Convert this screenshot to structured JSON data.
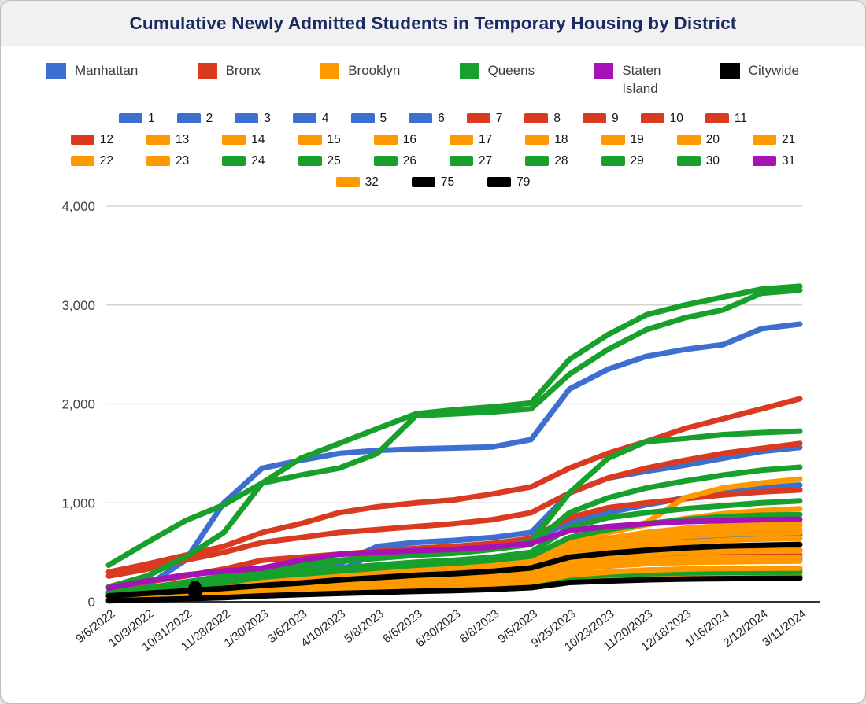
{
  "title": "Cumulative Newly Admitted Students in Temporary Housing by District",
  "colors": {
    "Manhattan": "#3d6fd1",
    "Bronx": "#d93a20",
    "Brooklyn": "#ff9900",
    "Queens": "#17a02b",
    "Staten Island": "#a512b5",
    "Citywide": "#000000",
    "grid": "#cccccc",
    "axis_line": "#333333",
    "y_tick_text": "#444444",
    "x_tick_text": "#222222",
    "title_text": "#1b2a63"
  },
  "chart_data": {
    "type": "line",
    "title": "Cumulative Newly Admitted Students in Temporary Housing by District",
    "xlabel": "",
    "ylabel": "",
    "ylim": [
      0,
      4000
    ],
    "y_ticks": [
      0,
      1000,
      2000,
      3000,
      4000
    ],
    "y_tick_labels": [
      "0",
      "1,000",
      "2,000",
      "3,000",
      "4,000"
    ],
    "grid": true,
    "legend_position": "top",
    "x_tick_labels": [
      "9/6/2022",
      "10/3/2022",
      "10/31/2022",
      "11/28/2022",
      "1/30/2023",
      "3/6/2023",
      "4/10/2023",
      "5/8/2023",
      "6/6/2023",
      "6/30/2023",
      "8/8/2023",
      "9/5/2023",
      "9/25/2023",
      "10/23/2023",
      "11/20/2023",
      "12/18/2023",
      "1/16/2024",
      "2/12/2024",
      "3/11/2024"
    ],
    "borough_legend": [
      {
        "label": "Manhattan",
        "borough": "Manhattan"
      },
      {
        "label": "Bronx",
        "borough": "Bronx"
      },
      {
        "label": "Brooklyn",
        "borough": "Brooklyn"
      },
      {
        "label": "Queens",
        "borough": "Queens"
      },
      {
        "label": "Staten\nIsland",
        "borough": "Staten Island"
      },
      {
        "label": "Citywide",
        "borough": "Citywide"
      }
    ],
    "legend_rows": [
      [
        "1",
        "2",
        "3",
        "4",
        "5",
        "6",
        "7",
        "8",
        "9",
        "10",
        "11"
      ],
      [
        "12",
        "13",
        "14",
        "15",
        "16",
        "17",
        "18",
        "19",
        "20",
        "21"
      ],
      [
        "22",
        "23",
        "24",
        "25",
        "26",
        "27",
        "28",
        "29",
        "30",
        "31"
      ],
      [
        "32",
        "75",
        "79"
      ]
    ],
    "series": [
      {
        "name": "1",
        "borough": "Manhattan",
        "values": [
          25,
          45,
          68,
          92,
          125,
          147,
          168,
          188,
          208,
          222,
          242,
          272,
          370,
          400,
          415,
          422,
          426,
          428,
          430
        ]
      },
      {
        "name": "2",
        "borough": "Manhattan",
        "values": [
          80,
          160,
          420,
          1000,
          1350,
          1430,
          1500,
          1530,
          1545,
          1555,
          1565,
          1640,
          2150,
          2350,
          2480,
          2550,
          2600,
          2760,
          2807
        ]
      },
      {
        "name": "3",
        "borough": "Manhattan",
        "values": [
          30,
          60,
          90,
          130,
          250,
          280,
          310,
          500,
          540,
          560,
          580,
          620,
          800,
          900,
          980,
          1050,
          1100,
          1150,
          1180
        ]
      },
      {
        "name": "4",
        "borough": "Manhattan",
        "values": [
          18,
          32,
          48,
          66,
          90,
          106,
          122,
          137,
          152,
          163,
          178,
          200,
          272,
          295,
          310,
          318,
          323,
          327,
          330
        ]
      },
      {
        "name": "5",
        "borough": "Manhattan",
        "values": [
          35,
          60,
          90,
          125,
          170,
          200,
          230,
          258,
          285,
          305,
          335,
          375,
          520,
          580,
          620,
          645,
          660,
          670,
          675
        ]
      },
      {
        "name": "6",
        "borough": "Manhattan",
        "values": [
          50,
          90,
          140,
          200,
          300,
          340,
          380,
          560,
          600,
          620,
          650,
          700,
          1100,
          1250,
          1320,
          1380,
          1450,
          1520,
          1560
        ]
      },
      {
        "name": "7",
        "borough": "Bronx",
        "values": [
          150,
          200,
          260,
          330,
          420,
          450,
          480,
          510,
          540,
          560,
          590,
          640,
          850,
          950,
          1000,
          1040,
          1080,
          1110,
          1130
        ]
      },
      {
        "name": "8",
        "borough": "Bronx",
        "values": [
          40,
          65,
          95,
          128,
          170,
          198,
          225,
          250,
          275,
          293,
          318,
          355,
          440,
          455,
          462,
          467,
          470,
          473,
          475
        ]
      },
      {
        "name": "9",
        "borough": "Bronx",
        "values": [
          260,
          330,
          420,
          500,
          600,
          650,
          700,
          730,
          760,
          790,
          830,
          900,
          1100,
          1250,
          1350,
          1430,
          1500,
          1550,
          1600
        ]
      },
      {
        "name": "10",
        "borough": "Bronx",
        "values": [
          300,
          380,
          470,
          560,
          700,
          790,
          900,
          960,
          1000,
          1030,
          1090,
          1160,
          1350,
          1500,
          1620,
          1750,
          1850,
          1950,
          2052
        ]
      },
      {
        "name": "11",
        "borough": "Bronx",
        "values": [
          45,
          72,
          102,
          138,
          182,
          210,
          238,
          264,
          290,
          308,
          334,
          372,
          470,
          490,
          502,
          510,
          515,
          518,
          520
        ]
      },
      {
        "name": "12",
        "borough": "Bronx",
        "values": [
          20,
          34,
          50,
          68,
          92,
          108,
          124,
          139,
          154,
          165,
          180,
          202,
          240,
          248,
          253,
          256,
          258,
          259,
          260
        ]
      },
      {
        "name": "13",
        "borough": "Brooklyn",
        "values": [
          35,
          60,
          88,
          120,
          165,
          195,
          222,
          250,
          278,
          298,
          325,
          365,
          500,
          570,
          620,
          660,
          680,
          692,
          700
        ]
      },
      {
        "name": "14",
        "borough": "Brooklyn",
        "values": [
          40,
          70,
          100,
          135,
          185,
          215,
          245,
          275,
          305,
          325,
          355,
          395,
          540,
          620,
          680,
          720,
          745,
          760,
          770
        ]
      },
      {
        "name": "15",
        "borough": "Brooklyn",
        "values": [
          38,
          65,
          95,
          128,
          175,
          205,
          235,
          262,
          290,
          310,
          340,
          380,
          520,
          590,
          650,
          690,
          710,
          722,
          730
        ]
      },
      {
        "name": "16",
        "borough": "Brooklyn",
        "values": [
          32,
          55,
          80,
          110,
          150,
          178,
          205,
          230,
          255,
          272,
          298,
          335,
          460,
          520,
          570,
          600,
          620,
          633,
          640
        ]
      },
      {
        "name": "17",
        "borough": "Brooklyn",
        "values": [
          50,
          80,
          110,
          150,
          200,
          230,
          260,
          290,
          320,
          340,
          370,
          420,
          600,
          700,
          780,
          840,
          890,
          920,
          940
        ]
      },
      {
        "name": "18",
        "borough": "Brooklyn",
        "values": [
          45,
          75,
          105,
          140,
          190,
          220,
          250,
          280,
          310,
          330,
          360,
          400,
          560,
          640,
          700,
          740,
          770,
          790,
          800
        ]
      },
      {
        "name": "19",
        "borough": "Brooklyn",
        "values": [
          40,
          70,
          100,
          135,
          185,
          220,
          300,
          330,
          360,
          380,
          410,
          450,
          600,
          700,
          800,
          1050,
          1150,
          1200,
          1240
        ]
      },
      {
        "name": "20",
        "borough": "Brooklyn",
        "values": [
          22,
          38,
          56,
          76,
          105,
          124,
          143,
          161,
          179,
          192,
          210,
          236,
          320,
          360,
          385,
          398,
          404,
          408,
          410
        ]
      },
      {
        "name": "21",
        "borough": "Brooklyn",
        "values": [
          15,
          27,
          40,
          55,
          75,
          89,
          102,
          115,
          128,
          138,
          150,
          169,
          230,
          255,
          272,
          281,
          286,
          289,
          290
        ]
      },
      {
        "name": "22",
        "borough": "Brooklyn",
        "values": [
          25,
          42,
          62,
          85,
          115,
          137,
          158,
          178,
          198,
          212,
          232,
          260,
          355,
          400,
          425,
          440,
          446,
          449,
          450
        ]
      },
      {
        "name": "23",
        "borough": "Brooklyn",
        "values": [
          28,
          48,
          70,
          95,
          130,
          155,
          178,
          200,
          222,
          238,
          260,
          292,
          400,
          450,
          480,
          498,
          508,
          512,
          515
        ]
      },
      {
        "name": "24",
        "borough": "Queens",
        "values": [
          370,
          600,
          820,
          980,
          1200,
          1450,
          1600,
          1750,
          1900,
          1940,
          1970,
          2010,
          2450,
          2700,
          2900,
          3000,
          3080,
          3160,
          3190
        ]
      },
      {
        "name": "25",
        "borough": "Queens",
        "values": [
          90,
          140,
          200,
          260,
          340,
          380,
          420,
          450,
          480,
          500,
          530,
          580,
          900,
          1050,
          1150,
          1220,
          1280,
          1330,
          1360
        ]
      },
      {
        "name": "26",
        "borough": "Queens",
        "values": [
          60,
          100,
          140,
          190,
          250,
          280,
          310,
          340,
          370,
          390,
          420,
          460,
          650,
          730,
          790,
          830,
          860,
          875,
          880
        ]
      },
      {
        "name": "27",
        "borough": "Queens",
        "values": [
          100,
          140,
          190,
          240,
          310,
          360,
          410,
          440,
          470,
          490,
          530,
          610,
          1100,
          1450,
          1620,
          1650,
          1690,
          1710,
          1725
        ]
      },
      {
        "name": "28",
        "borough": "Queens",
        "values": [
          70,
          110,
          160,
          210,
          280,
          310,
          340,
          370,
          400,
          420,
          450,
          500,
          750,
          850,
          900,
          940,
          970,
          1000,
          1020
        ]
      },
      {
        "name": "29",
        "borough": "Queens",
        "values": [
          15,
          28,
          42,
          58,
          80,
          94,
          108,
          122,
          136,
          146,
          160,
          180,
          250,
          270,
          283,
          291,
          296,
          298,
          300
        ]
      },
      {
        "name": "30",
        "borough": "Queens",
        "values": [
          150,
          260,
          450,
          700,
          1200,
          1280,
          1350,
          1500,
          1880,
          1900,
          1920,
          1950,
          2300,
          2550,
          2750,
          2870,
          2950,
          3120,
          3150
        ]
      },
      {
        "name": "31",
        "borough": "Staten Island",
        "values": [
          140,
          210,
          270,
          310,
          340,
          420,
          480,
          500,
          515,
          530,
          555,
          590,
          720,
          760,
          790,
          810,
          820,
          830,
          835
        ]
      },
      {
        "name": "32",
        "borough": "Brooklyn",
        "values": [
          18,
          32,
          47,
          64,
          88,
          104,
          120,
          135,
          150,
          161,
          176,
          198,
          270,
          300,
          320,
          330,
          336,
          339,
          340
        ]
      },
      {
        "name": "75",
        "borough": "Citywide",
        "values": [
          60,
          85,
          110,
          135,
          165,
          190,
          220,
          245,
          268,
          285,
          308,
          342,
          450,
          490,
          520,
          545,
          562,
          572,
          580
        ]
      },
      {
        "name": "79",
        "borough": "Citywide",
        "values": [
          10,
          20,
          30,
          42,
          60,
          72,
          84,
          95,
          106,
          114,
          126,
          143,
          195,
          210,
          222,
          230,
          234,
          236,
          238
        ]
      }
    ],
    "annotations": [
      {
        "shape": "dot",
        "series": "75",
        "x_index": 2.25,
        "value": 112
      }
    ]
  }
}
